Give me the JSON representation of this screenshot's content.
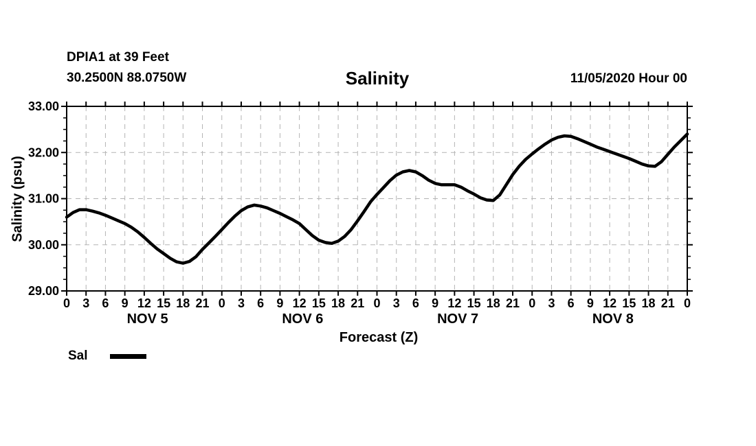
{
  "chart_data": {
    "type": "line",
    "station": "DPIA1 at 39 Feet",
    "location": "30.2500N 88.0750W",
    "title": "Salinity",
    "datetime": "11/05/2020 Hour 00",
    "xlabel": "Forecast (Z)",
    "ylabel": "Salinity (psu)",
    "ylim": [
      29.0,
      33.0
    ],
    "y_major_step": 1.0,
    "y_minor_step": 0.25,
    "y_tick_labels": [
      {
        "value": 29.0,
        "label": "29.00"
      },
      {
        "value": 30.0,
        "label": "30.00"
      },
      {
        "value": 31.0,
        "label": "31.00"
      },
      {
        "value": 32.0,
        "label": "32.00"
      },
      {
        "value": 33.0,
        "label": "33.00"
      }
    ],
    "x_range_hours": [
      0,
      96
    ],
    "x_tick_step": 3,
    "x_tick_labels": [
      "0",
      "3",
      "6",
      "9",
      "12",
      "15",
      "18",
      "21",
      "0",
      "3",
      "6",
      "9",
      "12",
      "15",
      "18",
      "21",
      "0",
      "3",
      "6",
      "9",
      "12",
      "15",
      "18",
      "21",
      "0",
      "3",
      "6",
      "9",
      "12",
      "15",
      "18",
      "21",
      "0"
    ],
    "day_labels": [
      {
        "label": "NOV 5",
        "hour": 12.5
      },
      {
        "label": "NOV 6",
        "hour": 36.5
      },
      {
        "label": "NOV 7",
        "hour": 60.5
      },
      {
        "label": "NOV 8",
        "hour": 84.5
      }
    ],
    "grid": true,
    "grid_color": "#b3b3b3",
    "line_color": "#000000",
    "legend_position": "bottom-left",
    "series": [
      {
        "name": "Sal",
        "x_start": 0,
        "x_step": 1,
        "values": [
          30.6,
          30.7,
          30.76,
          30.76,
          30.73,
          30.69,
          30.64,
          30.58,
          30.52,
          30.46,
          30.38,
          30.28,
          30.16,
          30.03,
          29.91,
          29.81,
          29.71,
          29.63,
          29.6,
          29.64,
          29.74,
          29.9,
          30.04,
          30.18,
          30.33,
          30.48,
          30.62,
          30.74,
          30.82,
          30.86,
          30.84,
          30.8,
          30.74,
          30.68,
          30.61,
          30.54,
          30.46,
          30.33,
          30.2,
          30.1,
          30.05,
          30.03,
          30.08,
          30.18,
          30.33,
          30.52,
          30.72,
          30.93,
          31.09,
          31.24,
          31.39,
          31.51,
          31.58,
          31.61,
          31.58,
          31.5,
          31.4,
          31.33,
          31.3,
          31.3,
          31.3,
          31.25,
          31.17,
          31.1,
          31.02,
          30.97,
          30.96,
          31.08,
          31.3,
          31.52,
          31.7,
          31.85,
          31.97,
          32.08,
          32.18,
          32.27,
          32.33,
          32.36,
          32.35,
          32.3,
          32.24,
          32.18,
          32.12,
          32.07,
          32.02,
          31.97,
          31.92,
          31.87,
          31.81,
          31.75,
          31.71,
          31.7,
          31.8,
          31.96,
          32.12,
          32.26,
          32.4
        ]
      }
    ]
  }
}
